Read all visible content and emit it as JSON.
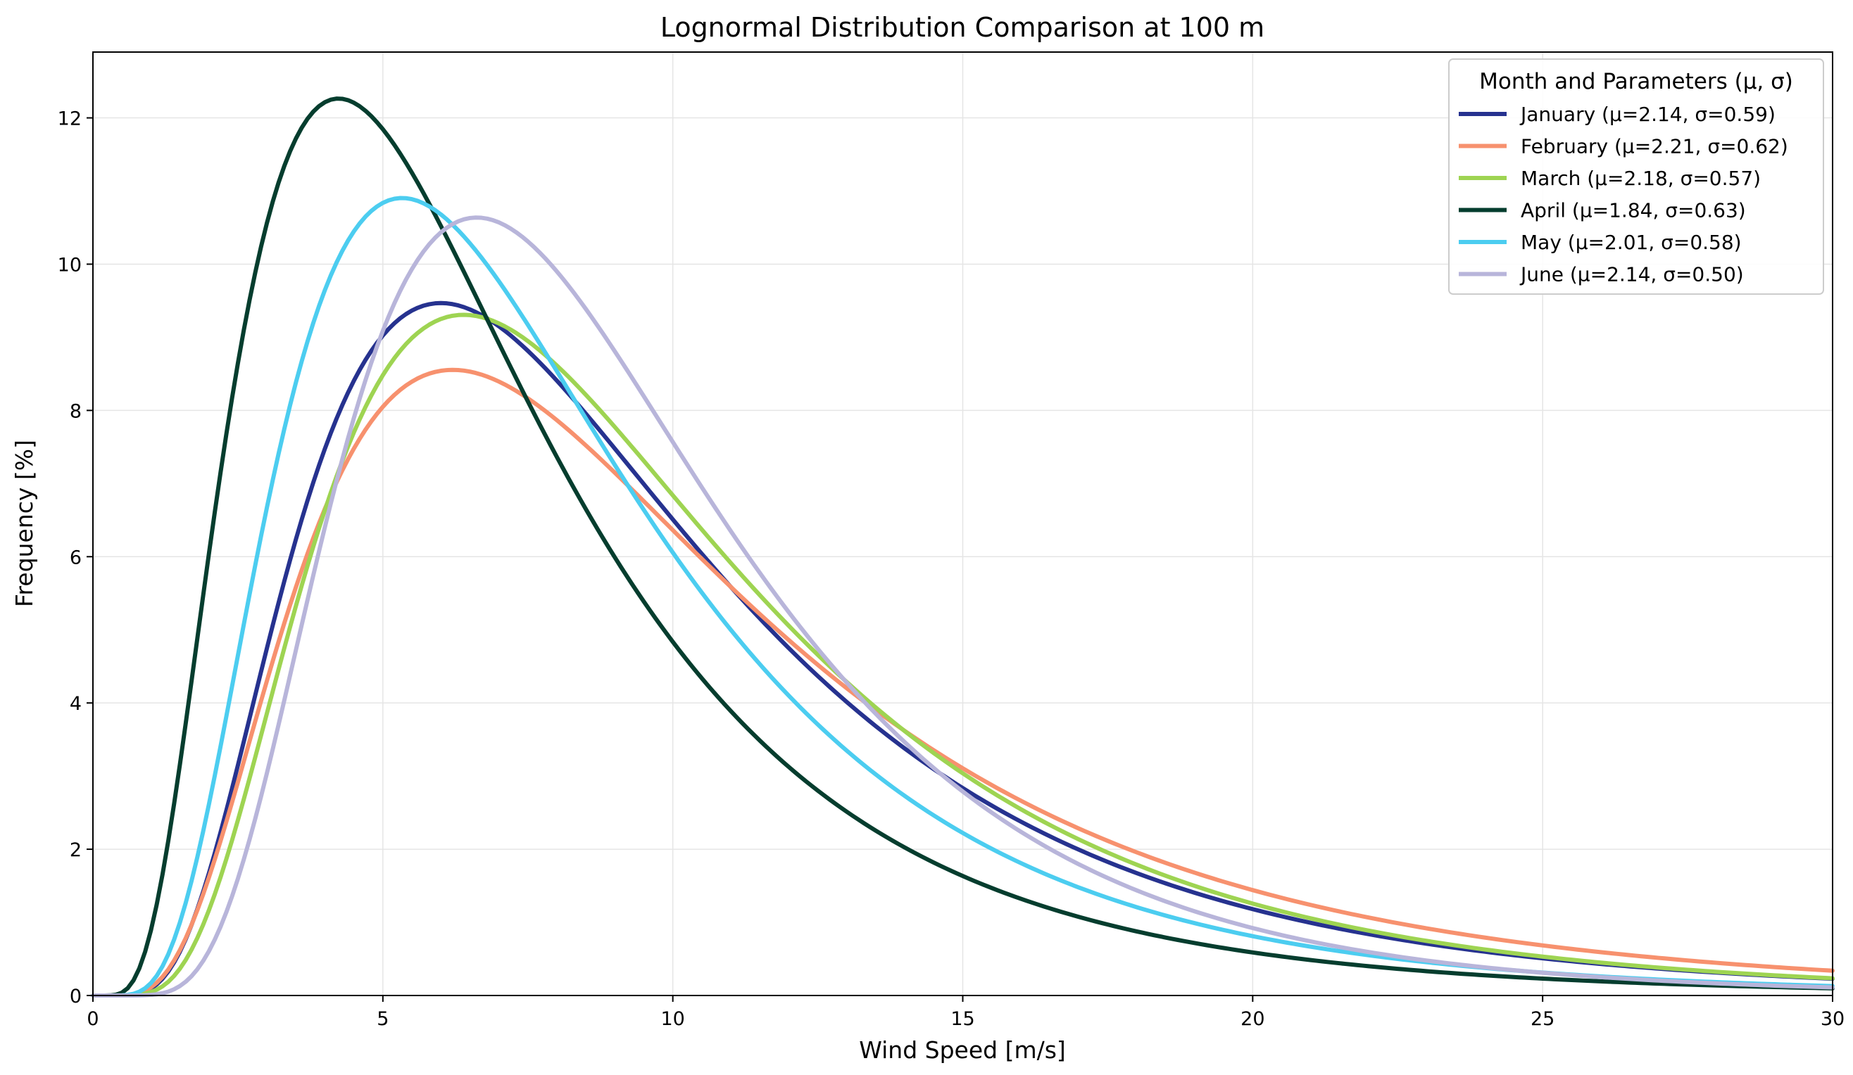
{
  "chart_data": {
    "type": "line",
    "title": "Lognormal Distribution Comparison at 100 m",
    "xlabel": "Wind Speed [m/s]",
    "ylabel": "Frequency [%]",
    "xlim": [
      0,
      30
    ],
    "ylim": [
      0,
      12.9
    ],
    "xticks": [
      0,
      5,
      10,
      15,
      20,
      25,
      30
    ],
    "yticks": [
      0,
      2,
      4,
      6,
      8,
      10,
      12
    ],
    "grid": true,
    "legend": {
      "title": "Month and Parameters (μ, σ)",
      "placement": "top-right"
    },
    "x_range": {
      "start": 0,
      "end": 30,
      "step": 0.1
    },
    "series": [
      {
        "name": "January (μ=2.14, σ=0.59)",
        "mu": 2.14,
        "sigma": 0.59,
        "color": "#26328f"
      },
      {
        "name": "February (μ=2.21, σ=0.62)",
        "mu": 2.21,
        "sigma": 0.62,
        "color": "#f7916e"
      },
      {
        "name": "March (μ=2.18, σ=0.57)",
        "mu": 2.18,
        "sigma": 0.57,
        "color": "#9ed452"
      },
      {
        "name": "April (μ=1.84, σ=0.63)",
        "mu": 1.84,
        "sigma": 0.63,
        "color": "#053d2e"
      },
      {
        "name": "May (μ=2.01, σ=0.58)",
        "mu": 2.01,
        "sigma": 0.58,
        "color": "#4ccdf0"
      },
      {
        "name": "June (μ=2.14, σ=0.50)",
        "mu": 2.14,
        "sigma": 0.5,
        "color": "#b8b5da"
      }
    ],
    "colors": {
      "axis": "#000000",
      "grid": "#e5e5e5",
      "legend_border": "#cccccc",
      "background": "#ffffff"
    }
  }
}
